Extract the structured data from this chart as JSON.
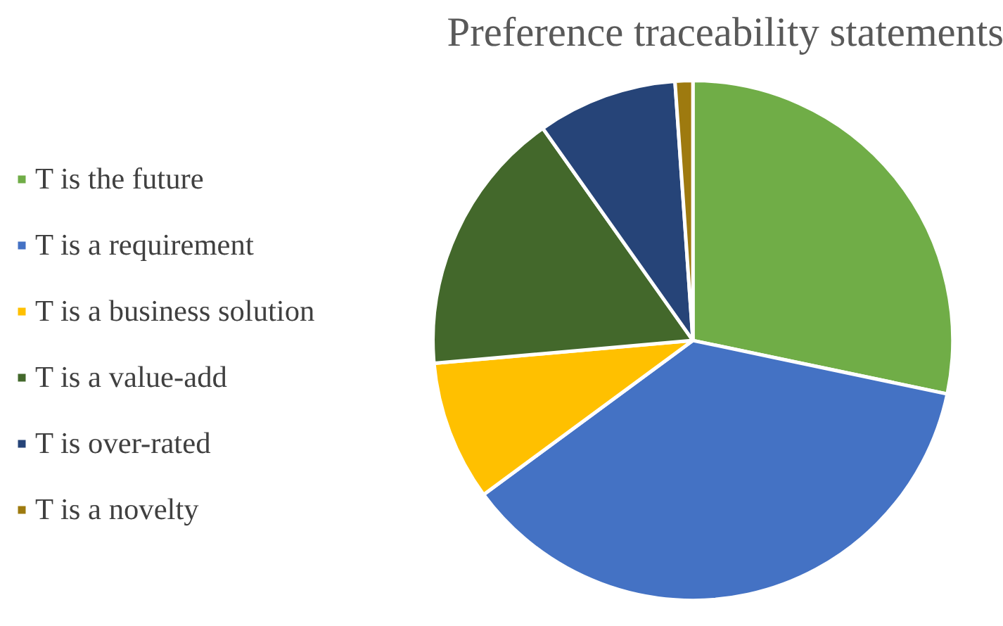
{
  "chart_data": {
    "type": "pie",
    "title": "Preference traceability statements",
    "categories": [
      "T is the future",
      "T is a requirement",
      "T is a business solution",
      "T is a value-add",
      "T is over-rated",
      "T is a novelty"
    ],
    "values": [
      28.3,
      36.6,
      8.7,
      16.6,
      8.7,
      1.1
    ],
    "colors": [
      "#70ad47",
      "#4472c4",
      "#ffc000",
      "#43682b",
      "#264478",
      "#9e7a0f"
    ],
    "legend": "left"
  }
}
